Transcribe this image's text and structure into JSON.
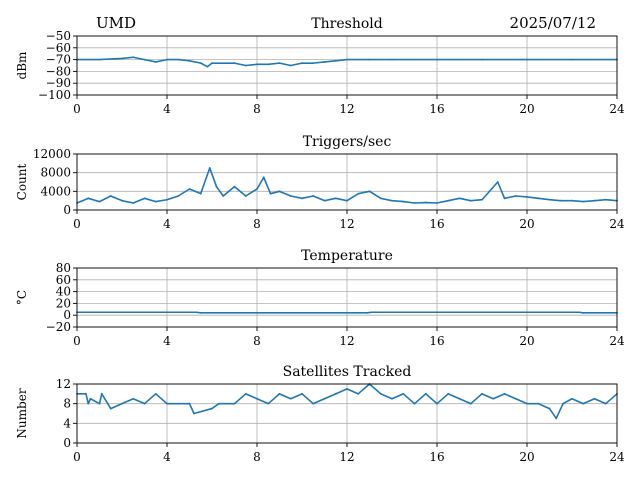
{
  "header": {
    "left": "UMD",
    "right": "2025/07/12"
  },
  "colors": {
    "line": "#1f77b4",
    "grid": "#b0b0b0",
    "axis": "#000000"
  },
  "chart_data": [
    {
      "type": "line",
      "title": "Threshold",
      "xlabel": "",
      "ylabel": "dBm",
      "xlim": [
        0,
        24
      ],
      "ylim": [
        -100,
        -50
      ],
      "xticks": [
        0,
        4,
        8,
        12,
        16,
        20,
        24
      ],
      "yticks": [
        -100,
        -90,
        -80,
        -70,
        -60,
        -50
      ],
      "ytick_labels": [
        "−100",
        "−90",
        "−80",
        "−70",
        "−60",
        "−50"
      ],
      "grid": true,
      "series": [
        {
          "x": [
            0,
            1,
            2,
            2.5,
            3,
            3.5,
            4,
            4.5,
            5,
            5.5,
            5.8,
            6,
            7,
            7.5,
            8,
            8.5,
            9,
            9.5,
            10,
            10.5,
            11,
            11.5,
            12,
            13,
            14,
            16,
            18,
            20,
            22,
            24
          ],
          "y": [
            -70,
            -70,
            -69,
            -68,
            -70,
            -72,
            -70,
            -70,
            -71,
            -73,
            -76,
            -73,
            -73,
            -75,
            -74,
            -74,
            -73,
            -75,
            -73,
            -73,
            -72,
            -71,
            -70,
            -70,
            -70,
            -70,
            -70,
            -70,
            -70,
            -70
          ]
        }
      ]
    },
    {
      "type": "line",
      "title": "Triggers/sec",
      "xlabel": "",
      "ylabel": "Count",
      "xlim": [
        0,
        24
      ],
      "ylim": [
        0,
        12000
      ],
      "xticks": [
        0,
        4,
        8,
        12,
        16,
        20,
        24
      ],
      "yticks": [
        0,
        4000,
        8000,
        12000
      ],
      "ytick_labels": [
        "0",
        "4000",
        "8000",
        "12000"
      ],
      "grid": true,
      "series": [
        {
          "x": [
            0,
            0.5,
            1,
            1.5,
            2,
            2.5,
            3,
            3.5,
            4,
            4.5,
            5,
            5.5,
            5.9,
            6.2,
            6.5,
            7,
            7.5,
            8,
            8.3,
            8.6,
            9,
            9.5,
            10,
            10.5,
            11,
            11.5,
            12,
            12.5,
            13,
            13.5,
            14,
            14.5,
            15,
            15.5,
            16,
            16.5,
            17,
            17.5,
            18,
            18.7,
            19,
            19.5,
            20,
            20.5,
            21,
            21.5,
            22,
            22.5,
            23,
            23.5,
            24
          ],
          "y": [
            1500,
            2500,
            1800,
            3000,
            2000,
            1500,
            2500,
            1800,
            2200,
            3000,
            4500,
            3500,
            9000,
            5000,
            3000,
            5000,
            3000,
            4500,
            7000,
            3500,
            4000,
            3000,
            2500,
            3000,
            2000,
            2500,
            2000,
            3500,
            4000,
            2500,
            2000,
            1800,
            1500,
            1600,
            1500,
            2000,
            2500,
            2000,
            2200,
            6000,
            2500,
            3000,
            2800,
            2500,
            2200,
            2000,
            2000,
            1800,
            2000,
            2200,
            2000
          ]
        }
      ]
    },
    {
      "type": "line",
      "title": "Temperature",
      "xlabel": "",
      "ylabel": "°C",
      "xlim": [
        0,
        24
      ],
      "ylim": [
        -20,
        80
      ],
      "xticks": [
        0,
        4,
        8,
        12,
        16,
        20,
        24
      ],
      "yticks": [
        -20,
        0,
        20,
        40,
        60,
        80
      ],
      "ytick_labels": [
        "−20",
        "0",
        "20",
        "40",
        "60",
        "80"
      ],
      "grid": true,
      "series": [
        {
          "x": [
            0,
            5.3,
            5.5,
            12.9,
            13.1,
            22.3,
            22.5,
            24
          ],
          "y": [
            5,
            5,
            4,
            4,
            5,
            5,
            4,
            4
          ]
        }
      ]
    },
    {
      "type": "line",
      "title": "Satellites Tracked",
      "xlabel": "",
      "ylabel": "Number",
      "xlim": [
        0,
        24
      ],
      "ylim": [
        0,
        12
      ],
      "xticks": [
        0,
        4,
        8,
        12,
        16,
        20,
        24
      ],
      "yticks": [
        0,
        4,
        8,
        12
      ],
      "ytick_labels": [
        "0",
        "4",
        "8",
        "12"
      ],
      "grid": true,
      "series": [
        {
          "x": [
            0,
            0.4,
            0.5,
            0.6,
            1.0,
            1.1,
            1.5,
            2.0,
            2.5,
            3.0,
            3.5,
            4.0,
            4.5,
            5.0,
            5.2,
            6.0,
            6.3,
            7.0,
            7.5,
            8.0,
            8.5,
            9.0,
            9.5,
            10.0,
            10.5,
            11.0,
            11.5,
            12.0,
            12.5,
            13.0,
            13.5,
            14.0,
            14.5,
            15.0,
            15.5,
            16.0,
            16.5,
            17.0,
            17.5,
            18.0,
            18.5,
            19.0,
            19.5,
            20.0,
            20.5,
            21.0,
            21.3,
            21.6,
            22.0,
            22.5,
            23.0,
            23.5,
            24.0
          ],
          "y": [
            10,
            10,
            8,
            9,
            8,
            10,
            7,
            8,
            9,
            8,
            10,
            8,
            8,
            8,
            6,
            7,
            8,
            8,
            10,
            9,
            8,
            10,
            9,
            10,
            8,
            9,
            10,
            11,
            10,
            12,
            10,
            9,
            10,
            8,
            10,
            8,
            10,
            9,
            8,
            10,
            9,
            10,
            9,
            8,
            8,
            7,
            5,
            8,
            9,
            8,
            9,
            8,
            10
          ]
        }
      ]
    }
  ]
}
